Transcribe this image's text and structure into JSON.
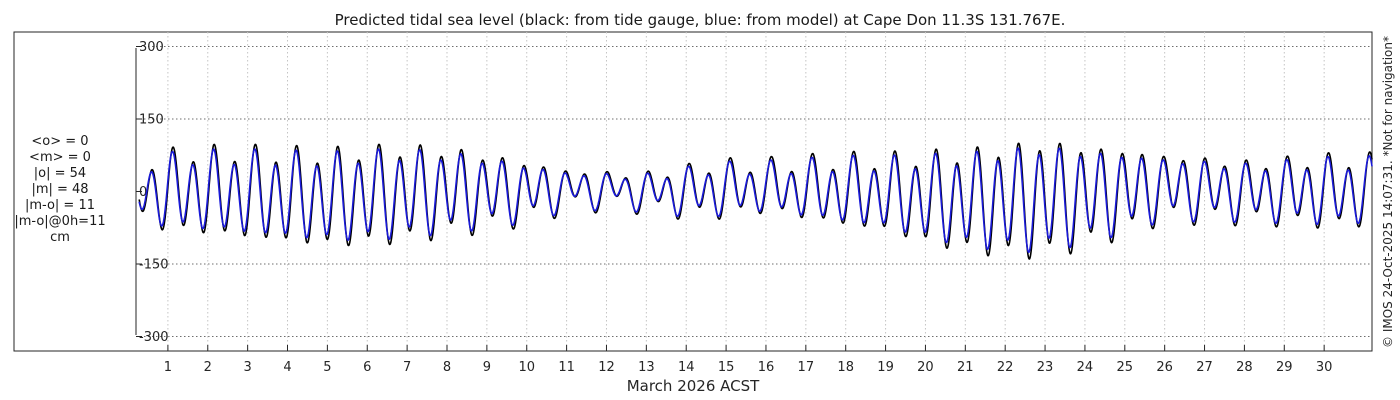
{
  "chart_data": {
    "type": "line",
    "title": "Predicted tidal sea level (black: from tide gauge, blue: from model) at Cape Don 11.3S 131.767E.",
    "xlabel": "March 2026 ACST",
    "ylabel": "",
    "x_ticks": [
      "1",
      "2",
      "3",
      "4",
      "5",
      "6",
      "7",
      "8",
      "9",
      "10",
      "11",
      "12",
      "13",
      "14",
      "15",
      "16",
      "17",
      "18",
      "19",
      "20",
      "21",
      "22",
      "23",
      "24",
      "25",
      "26",
      "27",
      "28",
      "29",
      "30"
    ],
    "xlim": [
      0.2,
      31.2
    ],
    "ylim": [
      -330,
      330
    ],
    "y_ticks": [
      300,
      150,
      0,
      -150,
      -300
    ],
    "grid": true,
    "stats_lines": [
      "<o> = 0",
      "<m> = 0",
      "|o| = 54",
      "|m| = 48",
      "|m-o| = 11",
      "|m-o|@0h=11",
      "cm"
    ],
    "side_note": "© IMOS 24-Oct-2025 14:07:31. *Not for navigation*",
    "series": [
      {
        "name": "tide gauge",
        "color": "#000000",
        "lag_days": 0.0,
        "scale": 1.0
      },
      {
        "name": "model",
        "color": "#1a1ad9",
        "lag_days": -0.015,
        "scale": 0.9
      }
    ],
    "signal": {
      "period_days": 0.5175,
      "phase_days": 0.09,
      "amplitude_days": [
        0.2,
        1.0,
        2.0,
        3.0,
        4.0,
        5.0,
        6.0,
        7.0,
        8.0,
        9.0,
        10.0,
        11.0,
        12.0,
        13.0,
        14.0,
        15.0,
        16.0,
        17.0,
        18.0,
        19.0,
        20.0,
        21.0,
        22.0,
        23.0,
        24.0,
        25.0,
        26.0,
        27.0,
        28.0,
        29.0,
        30.0,
        31.2
      ],
      "amplitude_cm": [
        45,
        75,
        80,
        85,
        88,
        90,
        92,
        90,
        82,
        70,
        55,
        35,
        30,
        32,
        45,
        50,
        45,
        55,
        65,
        70,
        85,
        95,
        105,
        110,
        95,
        80,
        60,
        58,
        55,
        60,
        65,
        65
      ],
      "mean_cm": [
        0,
        0,
        0,
        -5,
        -10,
        -15,
        -10,
        -5,
        0,
        0,
        0,
        5,
        5,
        0,
        0,
        5,
        10,
        5,
        0,
        -5,
        -15,
        -20,
        -20,
        -15,
        -10,
        0,
        10,
        5,
        0,
        0,
        0,
        0
      ],
      "diurnal_cm": 18
    }
  }
}
